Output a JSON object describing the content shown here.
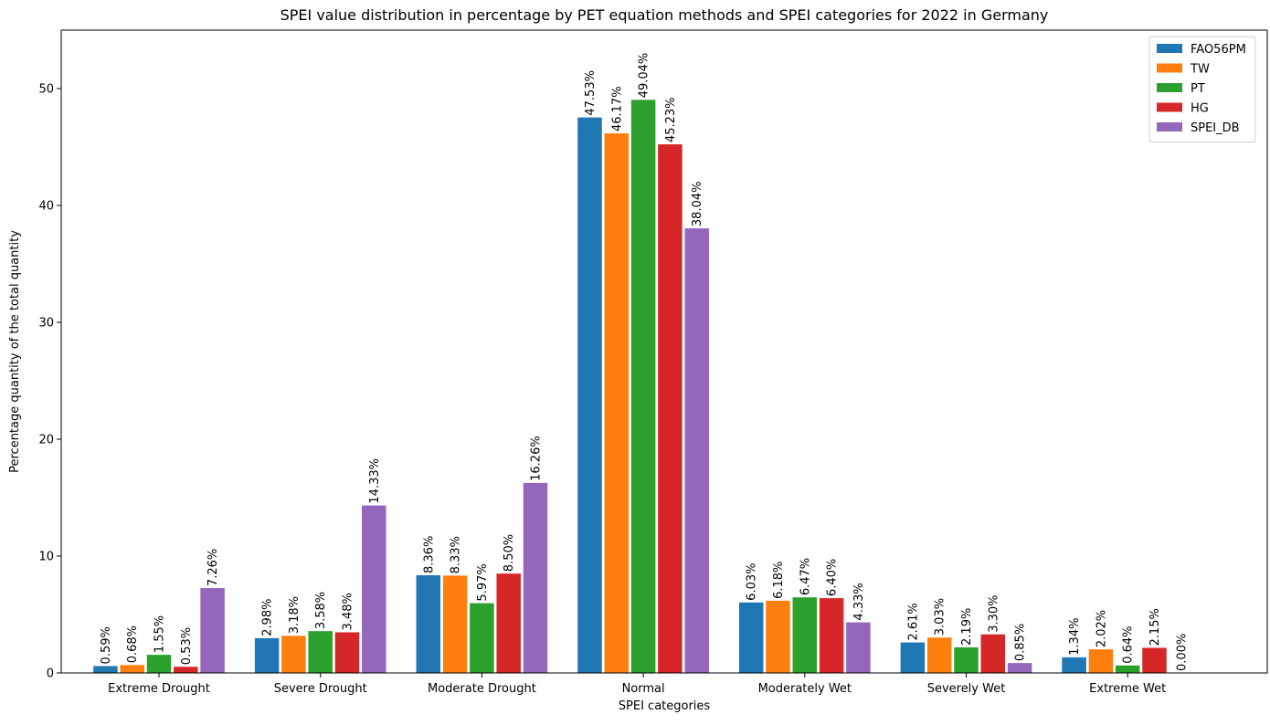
{
  "chart_data": {
    "type": "bar",
    "title": "SPEI value distribution in percentage by PET equation methods and SPEI categories for 2022 in Germany",
    "xlabel": "SPEI categories",
    "ylabel": "Percentage quantity of the total quantity",
    "ylim": [
      0,
      55
    ],
    "yticks": [
      0,
      10,
      20,
      30,
      40,
      50
    ],
    "grid": false,
    "legend_position": "top-right",
    "categories": [
      "Extreme Drought",
      "Severe Drought",
      "Moderate Drought",
      "Normal",
      "Moderately Wet",
      "Severely Wet",
      "Extreme Wet"
    ],
    "series": [
      {
        "name": "FAO56PM",
        "color": "#1f77b4",
        "values": [
          0.59,
          2.98,
          8.36,
          47.53,
          6.03,
          2.61,
          1.34
        ],
        "labels": [
          "0.59%",
          "2.98%",
          "8.36%",
          "47.53%",
          "6.03%",
          "2.61%",
          "1.34%"
        ]
      },
      {
        "name": "TW",
        "color": "#ff7f0e",
        "values": [
          0.68,
          3.18,
          8.33,
          46.17,
          6.18,
          3.03,
          2.02
        ],
        "labels": [
          "0.68%",
          "3.18%",
          "8.33%",
          "46.17%",
          "6.18%",
          "3.03%",
          "2.02%"
        ]
      },
      {
        "name": "PT",
        "color": "#2ca02c",
        "values": [
          1.55,
          3.58,
          5.97,
          49.04,
          6.47,
          2.19,
          0.64
        ],
        "labels": [
          "1.55%",
          "3.58%",
          "5.97%",
          "49.04%",
          "6.47%",
          "2.19%",
          "0.64%"
        ]
      },
      {
        "name": "HG",
        "color": "#d62728",
        "values": [
          0.53,
          3.48,
          8.5,
          45.23,
          6.4,
          3.3,
          2.15
        ],
        "labels": [
          "0.53%",
          "3.48%",
          "8.50%",
          "45.23%",
          "6.40%",
          "3.30%",
          "2.15%"
        ]
      },
      {
        "name": "SPEI_DB",
        "color": "#9467bd",
        "values": [
          7.26,
          14.33,
          16.26,
          38.04,
          4.33,
          0.85,
          0.0
        ],
        "labels": [
          "7.26%",
          "14.33%",
          "16.26%",
          "38.04%",
          "4.33%",
          "0.85%",
          "0.00%"
        ]
      }
    ]
  }
}
